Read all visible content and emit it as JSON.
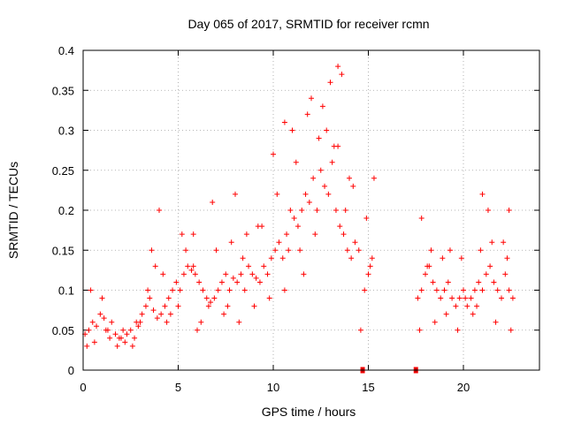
{
  "chart_data": {
    "type": "scatter",
    "title": "Day 065 of 2017, SRMTID for receiver rcmn",
    "xlabel": "GPS time / hours",
    "ylabel": "SRMTID / TECUs",
    "xlim": [
      0,
      24
    ],
    "ylim": [
      0,
      0.4
    ],
    "x_ticks": [
      0,
      5,
      10,
      15,
      20
    ],
    "x_tick_labels": [
      "0",
      "5",
      "10",
      "15",
      "20"
    ],
    "y_ticks": [
      0,
      0.05,
      0.1,
      0.15,
      0.2,
      0.25,
      0.3,
      0.35,
      0.4
    ],
    "y_tick_labels": [
      "0",
      "0.05",
      "0.1",
      "0.15",
      "0.2",
      "0.25",
      "0.3",
      "0.35",
      "0.4"
    ],
    "grid": true,
    "marker": "+",
    "series": [
      {
        "name": "SRMTID",
        "color": "#ff0000",
        "x": [
          0.1,
          0.3,
          0.5,
          0.7,
          0.9,
          1.1,
          1.3,
          1.5,
          1.7,
          1.9,
          2.1,
          2.3,
          2.5,
          2.7,
          2.9,
          3.1,
          3.3,
          3.5,
          3.7,
          3.9,
          4.1,
          4.3,
          4.5,
          4.7,
          4.9,
          5.1,
          5.3,
          5.5,
          5.7,
          5.9,
          6.1,
          6.3,
          6.5,
          6.7,
          6.9,
          7.1,
          7.3,
          7.5,
          7.7,
          7.9,
          8.1,
          8.3,
          8.5,
          8.7,
          8.9,
          9.1,
          9.3,
          9.5,
          9.7,
          9.9,
          10.1,
          10.3,
          10.5,
          10.7,
          10.9,
          11.1,
          11.3,
          11.5,
          11.7,
          11.9,
          12.1,
          12.3,
          12.5,
          12.7,
          12.9,
          13.1,
          13.3,
          13.5,
          13.7,
          13.9,
          14.1,
          14.3,
          14.5,
          14.8,
          15.0,
          15.2,
          17.6,
          17.8,
          18.0,
          18.2,
          18.4,
          18.6,
          18.8,
          19.0,
          19.2,
          19.4,
          19.6,
          19.8,
          20.0,
          20.2,
          20.4,
          20.6,
          20.8,
          21.0,
          21.2,
          21.4,
          21.6,
          21.8,
          22.0,
          22.2,
          22.4,
          22.6,
          0.2,
          0.6,
          1.0,
          1.4,
          1.8,
          2.2,
          2.6,
          3.0,
          3.4,
          3.8,
          4.2,
          4.6,
          5.0,
          5.4,
          5.8,
          6.2,
          6.6,
          7.0,
          7.4,
          7.8,
          8.2,
          8.6,
          9.0,
          9.4,
          9.8,
          10.2,
          10.6,
          11.0,
          11.4,
          11.8,
          12.2,
          12.6,
          13.0,
          13.4,
          13.8,
          14.2,
          14.9,
          17.7,
          18.1,
          18.5,
          18.9,
          19.3,
          19.7,
          20.1,
          20.5,
          20.9,
          21.3,
          21.7,
          22.1,
          22.5,
          0.4,
          1.2,
          2.0,
          2.8,
          3.6,
          4.4,
          5.2,
          6.0,
          6.8,
          7.6,
          8.4,
          9.2,
          10.0,
          10.8,
          11.6,
          12.4,
          13.2,
          14.0,
          15.1,
          18.3,
          19.1,
          19.9,
          20.7,
          21.5,
          22.3,
          12.0,
          12.8,
          13.4,
          10.6,
          11.2,
          13.6,
          21.0,
          22.4,
          8.0,
          5.8,
          4.0,
          15.3,
          14.6,
          17.8
        ],
        "y": [
          0.045,
          0.05,
          0.06,
          0.055,
          0.07,
          0.065,
          0.05,
          0.06,
          0.045,
          0.04,
          0.05,
          0.045,
          0.05,
          0.04,
          0.055,
          0.07,
          0.08,
          0.09,
          0.075,
          0.065,
          0.07,
          0.08,
          0.09,
          0.1,
          0.11,
          0.1,
          0.12,
          0.13,
          0.125,
          0.12,
          0.11,
          0.1,
          0.09,
          0.085,
          0.09,
          0.1,
          0.11,
          0.12,
          0.1,
          0.115,
          0.11,
          0.12,
          0.1,
          0.13,
          0.12,
          0.115,
          0.11,
          0.13,
          0.12,
          0.14,
          0.15,
          0.16,
          0.14,
          0.17,
          0.2,
          0.19,
          0.18,
          0.2,
          0.22,
          0.21,
          0.24,
          0.2,
          0.25,
          0.23,
          0.22,
          0.26,
          0.2,
          0.18,
          0.17,
          0.15,
          0.14,
          0.16,
          0.15,
          0.1,
          0.12,
          0.14,
          0.09,
          0.1,
          0.12,
          0.13,
          0.11,
          0.1,
          0.09,
          0.1,
          0.11,
          0.09,
          0.08,
          0.09,
          0.1,
          0.08,
          0.09,
          0.1,
          0.11,
          0.1,
          0.12,
          0.13,
          0.11,
          0.1,
          0.09,
          0.12,
          0.1,
          0.09,
          0.03,
          0.035,
          0.09,
          0.04,
          0.03,
          0.035,
          0.03,
          0.06,
          0.1,
          0.13,
          0.12,
          0.07,
          0.08,
          0.15,
          0.13,
          0.06,
          0.08,
          0.15,
          0.07,
          0.16,
          0.06,
          0.17,
          0.08,
          0.18,
          0.09,
          0.22,
          0.1,
          0.3,
          0.15,
          0.32,
          0.17,
          0.33,
          0.36,
          0.28,
          0.2,
          0.23,
          0.19,
          0.05,
          0.13,
          0.06,
          0.14,
          0.15,
          0.05,
          0.09,
          0.07,
          0.15,
          0.2,
          0.06,
          0.16,
          0.05,
          0.1,
          0.05,
          0.04,
          0.06,
          0.15,
          0.06,
          0.17,
          0.05,
          0.21,
          0.08,
          0.14,
          0.18,
          0.27,
          0.15,
          0.12,
          0.29,
          0.28,
          0.24,
          0.13,
          0.15,
          0.07,
          0.14,
          0.08,
          0.16,
          0.14,
          0.34,
          0.3,
          0.38,
          0.31,
          0.26,
          0.37,
          0.22,
          0.2,
          0.22,
          0.17,
          0.2,
          0.24,
          0.05,
          0.19
        ]
      }
    ],
    "zero_markers_x": [
      14.7,
      17.5
    ]
  }
}
